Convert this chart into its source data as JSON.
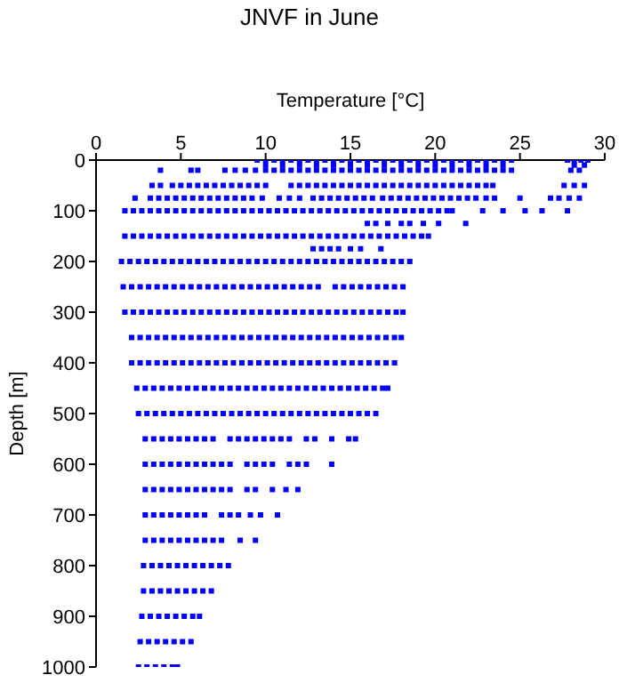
{
  "chart_data": {
    "type": "scatter",
    "title": "JNVF in June",
    "xlabel": "Temperature [°C]",
    "ylabel": "Depth [m]",
    "xlim": [
      0,
      30
    ],
    "xticks": [
      0,
      5,
      10,
      15,
      20,
      25,
      30
    ],
    "ylim": [
      1000,
      0
    ],
    "yticks": [
      0,
      100,
      200,
      300,
      400,
      500,
      600,
      700,
      800,
      900,
      1000
    ],
    "grid": false,
    "marker": "square",
    "series": [
      {
        "color": "#0000ff",
        "x": [
          9.5,
          10,
          10.5,
          11,
          11.5,
          12,
          12.5,
          13,
          13.5,
          14,
          14.5,
          15,
          15.5,
          16,
          16.5,
          17,
          17.5,
          18,
          18.5,
          19,
          19.5,
          20,
          20.5,
          21,
          21.5,
          22,
          22.5,
          23,
          23.5,
          24,
          24.5,
          27.8,
          28.2,
          28.6,
          29
        ],
        "values": [
          0,
          0,
          0,
          0,
          0,
          0,
          0,
          0,
          0,
          0,
          0,
          0,
          0,
          0,
          0,
          0,
          0,
          0,
          0,
          0,
          0,
          0,
          0,
          0,
          0,
          0,
          0,
          0,
          0,
          0,
          0,
          0,
          0,
          0,
          0
        ]
      },
      {
        "color": "#0000ff",
        "x": [
          10,
          11,
          12,
          13,
          14,
          15,
          16,
          17,
          18,
          19,
          20,
          21,
          22,
          23,
          24,
          28.2,
          28.8
        ],
        "values": [
          10,
          10,
          10,
          10,
          10,
          10,
          10,
          10,
          10,
          10,
          10,
          10,
          10,
          10,
          10,
          10,
          10
        ]
      },
      {
        "color": "#0000ff",
        "x": [
          3.8,
          5.6,
          6,
          7.6,
          8.2,
          8.8,
          9.4,
          10,
          10.5,
          11,
          11.5,
          12,
          12.5,
          13,
          13.5,
          14,
          14.5,
          15,
          15.5,
          16,
          16.5,
          17,
          17.5,
          18,
          18.5,
          19,
          19.5,
          20,
          20.5,
          21,
          21.5,
          22,
          22.5,
          23,
          23.5,
          24,
          24.5,
          28,
          28.5
        ],
        "values": [
          20,
          20,
          20,
          20,
          20,
          20,
          20,
          20,
          20,
          20,
          20,
          20,
          20,
          20,
          20,
          20,
          20,
          20,
          20,
          20,
          20,
          20,
          20,
          20,
          20,
          20,
          20,
          20,
          20,
          20,
          20,
          20,
          20,
          20,
          20,
          20,
          20,
          20,
          20
        ]
      },
      {
        "color": "#0000ff",
        "x": [
          3.3,
          3.8,
          4.5,
          5,
          5.5,
          6,
          6.5,
          7,
          7.5,
          8,
          8.5,
          9,
          9.5,
          10,
          11.5,
          12,
          12.5,
          13,
          13.5,
          14,
          14.5,
          15,
          15.5,
          16,
          16.5,
          17,
          17.5,
          18,
          18.5,
          19,
          19.5,
          20,
          20.5,
          21,
          21.5,
          22,
          22.5,
          23,
          23.4,
          27.6,
          28.2,
          28.8
        ],
        "values": [
          50,
          50,
          50,
          50,
          50,
          50,
          50,
          50,
          50,
          50,
          50,
          50,
          50,
          50,
          50,
          50,
          50,
          50,
          50,
          50,
          50,
          50,
          50,
          50,
          50,
          50,
          50,
          50,
          50,
          50,
          50,
          50,
          50,
          50,
          50,
          50,
          50,
          50,
          50,
          50,
          50,
          50
        ]
      },
      {
        "color": "#0000ff",
        "x": [
          2.3,
          3.2,
          3.7,
          4.2,
          4.7,
          5.2,
          5.7,
          6.2,
          6.7,
          7.2,
          7.7,
          8.2,
          8.7,
          9.2,
          9.8,
          10.8,
          11.4,
          12,
          12.8,
          13.3,
          13.8,
          14.3,
          14.8,
          15.3,
          15.8,
          16.3,
          16.9,
          17.4,
          17.9,
          18.4,
          18.9,
          19.4,
          19.9,
          20.4,
          20.9,
          21.4,
          21.9,
          22.4,
          23,
          23.5,
          25,
          26.8,
          27.3,
          27.9,
          28.5
        ],
        "values": [
          75,
          75,
          75,
          75,
          75,
          75,
          75,
          75,
          75,
          75,
          75,
          75,
          75,
          75,
          75,
          75,
          75,
          75,
          75,
          75,
          75,
          75,
          75,
          75,
          75,
          75,
          75,
          75,
          75,
          75,
          75,
          75,
          75,
          75,
          75,
          75,
          75,
          75,
          75,
          75,
          75,
          75,
          75,
          75,
          75
        ]
      },
      {
        "color": "#0000ff",
        "x": [
          1.7,
          2.2,
          2.7,
          3.2,
          3.7,
          4.2,
          4.7,
          5.2,
          5.7,
          6.2,
          6.7,
          7.2,
          7.7,
          8.2,
          8.7,
          9.2,
          9.7,
          10.2,
          10.7,
          11.2,
          11.7,
          12.2,
          12.7,
          13.2,
          13.7,
          14.2,
          14.7,
          15.2,
          15.7,
          16.2,
          16.7,
          17.2,
          17.7,
          18.2,
          18.7,
          19.2,
          19.7,
          20.2,
          20.7,
          21,
          22.8,
          24,
          25.3,
          26.3,
          27.8
        ],
        "values": [
          100,
          100,
          100,
          100,
          100,
          100,
          100,
          100,
          100,
          100,
          100,
          100,
          100,
          100,
          100,
          100,
          100,
          100,
          100,
          100,
          100,
          100,
          100,
          100,
          100,
          100,
          100,
          100,
          100,
          100,
          100,
          100,
          100,
          100,
          100,
          100,
          100,
          100,
          100,
          100,
          100,
          100,
          100,
          100,
          100
        ]
      },
      {
        "color": "#0000ff",
        "x": [
          16,
          16.5,
          17.2,
          18,
          18.5,
          19.3,
          20.2,
          21.8
        ],
        "values": [
          125,
          125,
          125,
          125,
          125,
          125,
          125,
          125
        ]
      },
      {
        "color": "#0000ff",
        "x": [
          1.7,
          2.2,
          2.7,
          3.2,
          3.7,
          4.2,
          4.7,
          5.2,
          5.7,
          6.2,
          6.7,
          7.2,
          7.7,
          8.2,
          8.7,
          9.2,
          9.7,
          10.2,
          10.7,
          11.2,
          11.7,
          12.2,
          12.7,
          13.2,
          13.7,
          14.2,
          14.7,
          15.2,
          15.7,
          16.2,
          16.7,
          17.2,
          17.7,
          18.2,
          18.7,
          19.2,
          19.6
        ],
        "values": [
          150,
          150,
          150,
          150,
          150,
          150,
          150,
          150,
          150,
          150,
          150,
          150,
          150,
          150,
          150,
          150,
          150,
          150,
          150,
          150,
          150,
          150,
          150,
          150,
          150,
          150,
          150,
          150,
          150,
          150,
          150,
          150,
          150,
          150,
          150,
          150,
          150
        ]
      },
      {
        "color": "#0000ff",
        "x": [
          12.8,
          13.3,
          13.8,
          14.3,
          15,
          15.6,
          16.8
        ],
        "values": [
          175,
          175,
          175,
          175,
          175,
          175,
          175
        ]
      },
      {
        "color": "#0000ff",
        "x": [
          1.5,
          2,
          2.5,
          3,
          3.5,
          4,
          4.5,
          5,
          5.5,
          6,
          6.5,
          7,
          7.5,
          8,
          8.5,
          9,
          9.5,
          10,
          10.5,
          11,
          11.5,
          12,
          12.5,
          13,
          13.5,
          14,
          14.5,
          15,
          15.5,
          16,
          16.5,
          17,
          17.5,
          18,
          18.5
        ],
        "values": [
          200,
          200,
          200,
          200,
          200,
          200,
          200,
          200,
          200,
          200,
          200,
          200,
          200,
          200,
          200,
          200,
          200,
          200,
          200,
          200,
          200,
          200,
          200,
          200,
          200,
          200,
          200,
          200,
          200,
          200,
          200,
          200,
          200,
          200,
          200
        ]
      },
      {
        "color": "#0000ff",
        "x": [
          1.6,
          2.1,
          2.6,
          3.1,
          3.6,
          4.1,
          4.6,
          5.1,
          5.6,
          6.1,
          6.6,
          7.1,
          7.6,
          8.1,
          8.6,
          9.1,
          9.6,
          10.1,
          10.6,
          11.1,
          11.6,
          12.1,
          12.6,
          13.1,
          14.1,
          14.6,
          15.1,
          15.6,
          16.1,
          16.6,
          17.1,
          17.6,
          18.1
        ],
        "values": [
          250,
          250,
          250,
          250,
          250,
          250,
          250,
          250,
          250,
          250,
          250,
          250,
          250,
          250,
          250,
          250,
          250,
          250,
          250,
          250,
          250,
          250,
          250,
          250,
          250,
          250,
          250,
          250,
          250,
          250,
          250,
          250,
          250
        ]
      },
      {
        "color": "#0000ff",
        "x": [
          1.7,
          2.2,
          2.7,
          3.2,
          3.7,
          4.2,
          4.7,
          5.2,
          5.7,
          6.2,
          6.7,
          7.2,
          7.7,
          8.2,
          8.7,
          9.2,
          9.7,
          10.2,
          10.7,
          11.2,
          11.7,
          12.2,
          12.7,
          13.2,
          13.7,
          14.2,
          14.7,
          15.2,
          15.7,
          16.2,
          16.7,
          17.2,
          17.7,
          18.1
        ],
        "values": [
          300,
          300,
          300,
          300,
          300,
          300,
          300,
          300,
          300,
          300,
          300,
          300,
          300,
          300,
          300,
          300,
          300,
          300,
          300,
          300,
          300,
          300,
          300,
          300,
          300,
          300,
          300,
          300,
          300,
          300,
          300,
          300,
          300,
          300
        ]
      },
      {
        "color": "#0000ff",
        "x": [
          2.1,
          2.6,
          3.1,
          3.6,
          4.1,
          4.6,
          5.1,
          5.6,
          6.1,
          6.6,
          7.1,
          7.6,
          8.1,
          8.6,
          9.1,
          9.6,
          10.1,
          10.6,
          11.1,
          11.6,
          12.1,
          12.6,
          13.1,
          13.6,
          14.1,
          14.6,
          15.1,
          15.6,
          16.1,
          16.6,
          17.1,
          17.6,
          18
        ],
        "values": [
          350,
          350,
          350,
          350,
          350,
          350,
          350,
          350,
          350,
          350,
          350,
          350,
          350,
          350,
          350,
          350,
          350,
          350,
          350,
          350,
          350,
          350,
          350,
          350,
          350,
          350,
          350,
          350,
          350,
          350,
          350,
          350,
          350
        ]
      },
      {
        "color": "#0000ff",
        "x": [
          2.1,
          2.6,
          3.1,
          3.6,
          4.1,
          4.6,
          5.1,
          5.6,
          6.1,
          6.6,
          7.1,
          7.6,
          8.1,
          8.6,
          9.1,
          9.6,
          10.1,
          10.6,
          11.1,
          11.6,
          12.1,
          12.6,
          13.1,
          13.6,
          14.1,
          14.6,
          15.1,
          15.6,
          16.1,
          16.6,
          17.1,
          17.6
        ],
        "values": [
          400,
          400,
          400,
          400,
          400,
          400,
          400,
          400,
          400,
          400,
          400,
          400,
          400,
          400,
          400,
          400,
          400,
          400,
          400,
          400,
          400,
          400,
          400,
          400,
          400,
          400,
          400,
          400,
          400,
          400,
          400,
          400
        ]
      },
      {
        "color": "#0000ff",
        "x": [
          2.4,
          2.9,
          3.4,
          3.9,
          4.4,
          4.9,
          5.4,
          5.9,
          6.4,
          6.9,
          7.4,
          7.9,
          8.4,
          8.9,
          9.4,
          9.9,
          10.4,
          10.9,
          11.4,
          11.9,
          12.4,
          12.9,
          13.4,
          13.9,
          14.4,
          14.9,
          15.4,
          15.9,
          16.4,
          16.9,
          17.2
        ],
        "values": [
          450,
          450,
          450,
          450,
          450,
          450,
          450,
          450,
          450,
          450,
          450,
          450,
          450,
          450,
          450,
          450,
          450,
          450,
          450,
          450,
          450,
          450,
          450,
          450,
          450,
          450,
          450,
          450,
          450,
          450,
          450
        ]
      },
      {
        "color": "#0000ff",
        "x": [
          2.5,
          3,
          3.5,
          4,
          4.5,
          5,
          5.5,
          6,
          6.5,
          7,
          7.5,
          8,
          8.5,
          9,
          9.5,
          10,
          10.5,
          11,
          11.5,
          12,
          12.5,
          13,
          13.5,
          14,
          14.5,
          15,
          15.5,
          16,
          16.5
        ],
        "values": [
          500,
          500,
          500,
          500,
          500,
          500,
          500,
          500,
          500,
          500,
          500,
          500,
          500,
          500,
          500,
          500,
          500,
          500,
          500,
          500,
          500,
          500,
          500,
          500,
          500,
          500,
          500,
          500,
          500
        ]
      },
      {
        "color": "#0000ff",
        "x": [
          2.9,
          3.4,
          3.9,
          4.4,
          4.9,
          5.4,
          5.9,
          6.4,
          6.9,
          7.9,
          8.4,
          8.9,
          9.4,
          9.9,
          10.4,
          10.9,
          11.4,
          12.4,
          12.9,
          13.9,
          14.9,
          15.3
        ],
        "values": [
          550,
          550,
          550,
          550,
          550,
          550,
          550,
          550,
          550,
          550,
          550,
          550,
          550,
          550,
          550,
          550,
          550,
          550,
          550,
          550,
          550,
          550
        ]
      },
      {
        "color": "#0000ff",
        "x": [
          2.9,
          3.4,
          3.9,
          4.4,
          4.9,
          5.4,
          5.9,
          6.4,
          6.9,
          7.4,
          7.9,
          8.9,
          9.4,
          9.9,
          10.4,
          11.4,
          11.9,
          12.4,
          13.9
        ],
        "values": [
          600,
          600,
          600,
          600,
          600,
          600,
          600,
          600,
          600,
          600,
          600,
          600,
          600,
          600,
          600,
          600,
          600,
          600,
          600
        ]
      },
      {
        "color": "#0000ff",
        "x": [
          2.9,
          3.4,
          3.9,
          4.4,
          4.9,
          5.4,
          5.9,
          6.4,
          6.9,
          7.4,
          7.9,
          8.9,
          9.4,
          10.4,
          11.2,
          11.9
        ],
        "values": [
          650,
          650,
          650,
          650,
          650,
          650,
          650,
          650,
          650,
          650,
          650,
          650,
          650,
          650,
          650,
          650
        ]
      },
      {
        "color": "#0000ff",
        "x": [
          2.9,
          3.4,
          3.9,
          4.4,
          4.9,
          5.4,
          5.9,
          6.4,
          7.4,
          7.9,
          8.4,
          9.1,
          9.7,
          10.7
        ],
        "values": [
          700,
          700,
          700,
          700,
          700,
          700,
          700,
          700,
          700,
          700,
          700,
          700,
          700,
          700
        ]
      },
      {
        "color": "#0000ff",
        "x": [
          2.9,
          3.4,
          3.9,
          4.4,
          4.9,
          5.4,
          5.9,
          6.4,
          6.9,
          7.4,
          8.5,
          9.4
        ],
        "values": [
          750,
          750,
          750,
          750,
          750,
          750,
          750,
          750,
          750,
          750,
          750,
          750
        ]
      },
      {
        "color": "#0000ff",
        "x": [
          2.8,
          3.3,
          3.8,
          4.3,
          4.8,
          5.3,
          5.8,
          6.3,
          6.8,
          7.3,
          7.8
        ],
        "values": [
          800,
          800,
          800,
          800,
          800,
          800,
          800,
          800,
          800,
          800,
          800
        ]
      },
      {
        "color": "#0000ff",
        "x": [
          2.8,
          3.3,
          3.8,
          4.3,
          4.8,
          5.3,
          5.8,
          6.3,
          6.8
        ],
        "values": [
          850,
          850,
          850,
          850,
          850,
          850,
          850,
          850,
          850
        ]
      },
      {
        "color": "#0000ff",
        "x": [
          2.7,
          3.2,
          3.7,
          4.2,
          4.7,
          5.2,
          5.7,
          6.1
        ],
        "values": [
          900,
          900,
          900,
          900,
          900,
          900,
          900,
          900
        ]
      },
      {
        "color": "#0000ff",
        "x": [
          2.6,
          3.1,
          3.6,
          4.1,
          4.6,
          5.1,
          5.6
        ],
        "values": [
          950,
          950,
          950,
          950,
          950,
          950,
          950
        ]
      },
      {
        "color": "#0000ff",
        "x": [
          2.5,
          3,
          3.5,
          4,
          4.5,
          4.8
        ],
        "values": [
          1000,
          1000,
          1000,
          1000,
          1000,
          1000
        ]
      }
    ]
  }
}
